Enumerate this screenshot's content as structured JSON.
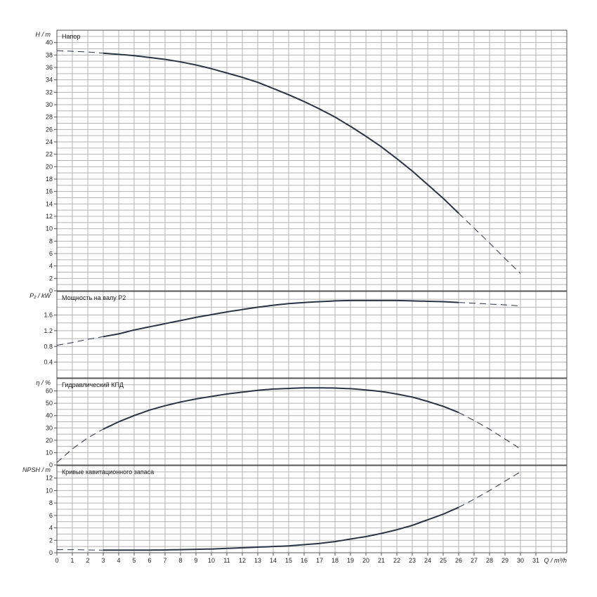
{
  "colors": {
    "grid": "#b4b4b4",
    "frame": "#555555",
    "curve": "#2b3345",
    "text": "#222222"
  },
  "x_axis": {
    "label": "Q / m³/h",
    "min": 0,
    "max": 33,
    "ticks": [
      0,
      1,
      2,
      3,
      4,
      5,
      6,
      7,
      8,
      9,
      10,
      11,
      12,
      13,
      14,
      15,
      16,
      17,
      18,
      19,
      20,
      21,
      22,
      23,
      24,
      25,
      26,
      27,
      28,
      29,
      30,
      31
    ]
  },
  "chart_data": [
    {
      "type": "line",
      "title": "Напор",
      "ylabel": "H / m",
      "ylim": [
        0,
        42
      ],
      "yticks": [
        0,
        2,
        4,
        6,
        8,
        10,
        12,
        14,
        16,
        18,
        20,
        22,
        24,
        26,
        28,
        30,
        32,
        34,
        36,
        38,
        40
      ],
      "x": [
        0,
        2,
        3,
        4,
        5,
        6,
        7,
        8,
        9,
        10,
        11,
        12,
        13,
        14,
        15,
        16,
        17,
        18,
        19,
        20,
        21,
        22,
        23,
        24,
        25,
        26,
        27,
        28,
        29,
        30
      ],
      "values": [
        38.7,
        38.5,
        38.3,
        38.1,
        37.9,
        37.6,
        37.3,
        36.9,
        36.4,
        35.8,
        35.1,
        34.4,
        33.6,
        32.6,
        31.6,
        30.5,
        29.3,
        28,
        26.5,
        24.9,
        23.2,
        21.3,
        19.3,
        17.1,
        14.9,
        12.5,
        10.1,
        7.7,
        5.2,
        2.8
      ],
      "solid_range": [
        3,
        26
      ]
    },
    {
      "type": "line",
      "title": "Мощность на валу P2",
      "ylabel": "P₂ / kW",
      "ylim": [
        0,
        2.2
      ],
      "yticks": [
        0.4,
        0.8,
        1.2,
        1.6
      ],
      "x": [
        0,
        1,
        2,
        3,
        4,
        5,
        6,
        7,
        8,
        9,
        10,
        11,
        12,
        13,
        14,
        15,
        16,
        17,
        18,
        19,
        20,
        21,
        22,
        23,
        24,
        25,
        26,
        27,
        28,
        29,
        30
      ],
      "values": [
        0.83,
        0.9,
        0.98,
        1.05,
        1.12,
        1.22,
        1.3,
        1.38,
        1.46,
        1.54,
        1.61,
        1.68,
        1.74,
        1.8,
        1.85,
        1.89,
        1.92,
        1.94,
        1.96,
        1.97,
        1.97,
        1.97,
        1.97,
        1.96,
        1.95,
        1.94,
        1.92,
        1.9,
        1.88,
        1.86,
        1.83
      ],
      "solid_range": [
        3,
        26
      ]
    },
    {
      "type": "line",
      "title": "Гидравлический КПД",
      "ylabel": "η / %",
      "ylim": [
        0,
        70
      ],
      "yticks": [
        0,
        10,
        20,
        30,
        40,
        50,
        60
      ],
      "x": [
        0,
        1,
        2,
        3,
        4,
        5,
        6,
        7,
        8,
        9,
        10,
        11,
        12,
        13,
        14,
        15,
        16,
        17,
        18,
        19,
        20,
        21,
        22,
        23,
        24,
        25,
        26,
        27,
        28,
        29,
        30
      ],
      "values": [
        2,
        13,
        22,
        29,
        35,
        40,
        44.5,
        48,
        51,
        53.5,
        55.5,
        57.5,
        59,
        60.5,
        61.5,
        62,
        62.5,
        62.5,
        62.3,
        61.8,
        60.8,
        59.5,
        57.5,
        55,
        51.5,
        47.5,
        42.5,
        36,
        29,
        21,
        13
      ],
      "solid_range": [
        3,
        26
      ]
    },
    {
      "type": "line",
      "title": "Кривые кавитационного запаса",
      "ylabel": "NPSH / m",
      "ylim": [
        0,
        14
      ],
      "yticks": [
        0,
        2,
        4,
        6,
        8,
        10,
        12
      ],
      "x": [
        0,
        1,
        2,
        3,
        4,
        5,
        6,
        7,
        8,
        9,
        10,
        11,
        12,
        13,
        14,
        15,
        16,
        17,
        18,
        19,
        20,
        21,
        22,
        23,
        24,
        25,
        26,
        27,
        28,
        29,
        30
      ],
      "values": [
        0.5,
        0.5,
        0.45,
        0.42,
        0.42,
        0.42,
        0.43,
        0.45,
        0.5,
        0.55,
        0.6,
        0.7,
        0.8,
        0.9,
        1,
        1.1,
        1.3,
        1.5,
        1.8,
        2.2,
        2.6,
        3.1,
        3.7,
        4.4,
        5.3,
        6.2,
        7.3,
        8.6,
        10,
        11.5,
        13
      ],
      "solid_range": [
        3,
        26
      ]
    }
  ]
}
